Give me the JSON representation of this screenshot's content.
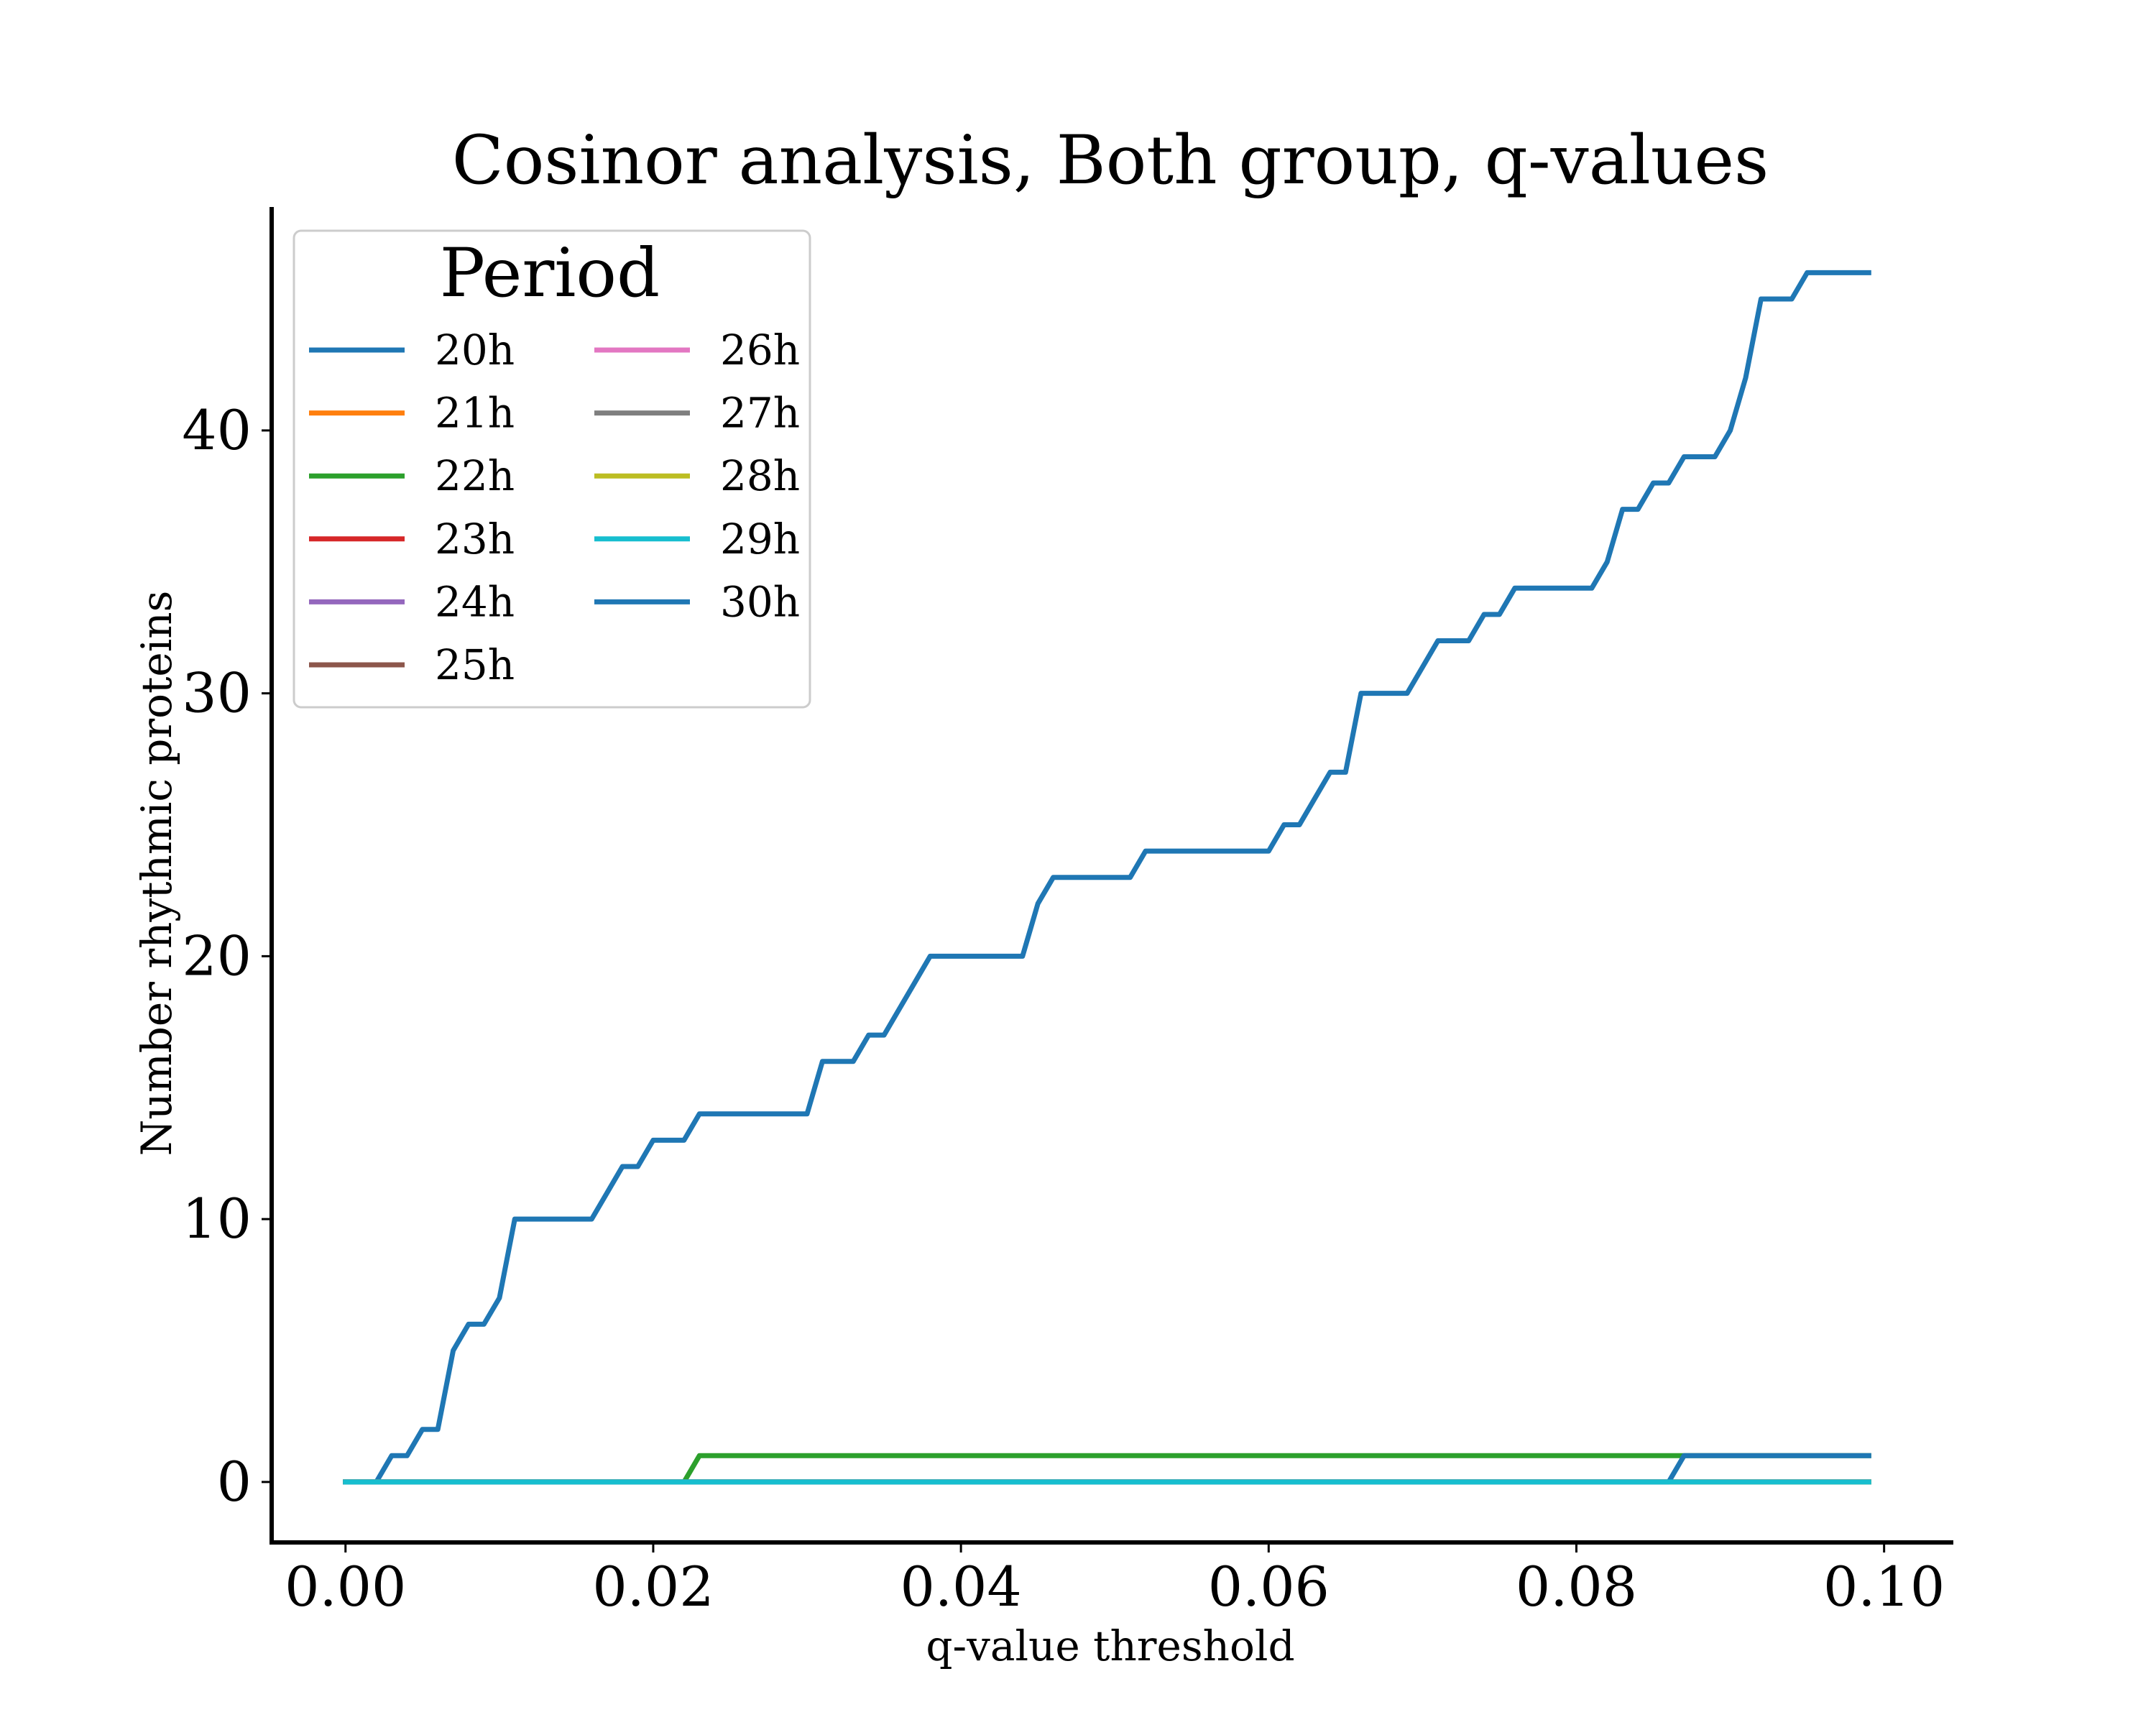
{
  "chart_data": {
    "type": "line",
    "title": "Cosinor analysis, Both group, q-values",
    "xlabel": "q-value threshold",
    "ylabel": "Number rhythmic proteins",
    "xlim": [
      -0.0048,
      0.1045
    ],
    "ylim": [
      -2.3,
      48.5
    ],
    "x_ticks": [
      0.0,
      0.02,
      0.04,
      0.06,
      0.08,
      0.1
    ],
    "x_tick_labels": [
      "0.00",
      "0.02",
      "0.04",
      "0.06",
      "0.08",
      "0.10"
    ],
    "y_ticks": [
      0,
      10,
      20,
      30,
      40
    ],
    "y_tick_labels": [
      "0",
      "10",
      "20",
      "30",
      "40"
    ],
    "grid": false,
    "legend": {
      "title": "Period",
      "placement": "top-left",
      "columns": 2
    },
    "series": [
      {
        "name": "20h",
        "color": "#1f77b4",
        "points": [
          [
            0.0,
            0
          ],
          [
            0.002,
            0
          ],
          [
            0.003,
            1
          ],
          [
            0.004,
            1
          ],
          [
            0.005,
            2
          ],
          [
            0.006,
            2
          ],
          [
            0.007,
            5
          ],
          [
            0.008,
            6
          ],
          [
            0.009,
            6
          ],
          [
            0.01,
            7
          ],
          [
            0.011,
            10
          ],
          [
            0.012,
            10
          ],
          [
            0.016,
            10
          ],
          [
            0.017,
            11
          ],
          [
            0.018,
            12
          ],
          [
            0.019,
            12
          ],
          [
            0.02,
            13
          ],
          [
            0.022,
            13
          ],
          [
            0.023,
            14
          ],
          [
            0.03,
            14
          ],
          [
            0.031,
            16
          ],
          [
            0.033,
            16
          ],
          [
            0.034,
            17
          ],
          [
            0.035,
            17
          ],
          [
            0.036,
            18
          ],
          [
            0.037,
            19
          ],
          [
            0.038,
            20
          ],
          [
            0.044,
            20
          ],
          [
            0.045,
            22
          ],
          [
            0.046,
            23
          ],
          [
            0.051,
            23
          ],
          [
            0.052,
            24
          ],
          [
            0.06,
            24
          ],
          [
            0.061,
            25
          ],
          [
            0.062,
            25
          ],
          [
            0.063,
            26
          ],
          [
            0.064,
            27
          ],
          [
            0.065,
            27
          ],
          [
            0.066,
            30
          ],
          [
            0.069,
            30
          ],
          [
            0.07,
            31
          ],
          [
            0.071,
            32
          ],
          [
            0.073,
            32
          ],
          [
            0.074,
            33
          ],
          [
            0.075,
            33
          ],
          [
            0.076,
            34
          ],
          [
            0.081,
            34
          ],
          [
            0.082,
            35
          ],
          [
            0.083,
            37
          ],
          [
            0.084,
            37
          ],
          [
            0.085,
            38
          ],
          [
            0.086,
            38
          ],
          [
            0.087,
            39
          ],
          [
            0.089,
            39
          ],
          [
            0.09,
            40
          ],
          [
            0.091,
            42
          ],
          [
            0.092,
            45
          ],
          [
            0.094,
            45
          ],
          [
            0.095,
            46
          ],
          [
            0.099,
            46
          ]
        ]
      },
      {
        "name": "21h",
        "color": "#ff7f0e",
        "points": [
          [
            0.0,
            0
          ],
          [
            0.099,
            0
          ]
        ]
      },
      {
        "name": "22h",
        "color": "#2ca02c",
        "points": [
          [
            0.0,
            0
          ],
          [
            0.022,
            0
          ],
          [
            0.023,
            1
          ],
          [
            0.099,
            1
          ]
        ]
      },
      {
        "name": "23h",
        "color": "#d62728",
        "points": [
          [
            0.0,
            0
          ],
          [
            0.099,
            0
          ]
        ]
      },
      {
        "name": "24h",
        "color": "#9467bd",
        "points": [
          [
            0.0,
            0
          ],
          [
            0.099,
            0
          ]
        ]
      },
      {
        "name": "25h",
        "color": "#8c564b",
        "points": [
          [
            0.0,
            0
          ],
          [
            0.099,
            0
          ]
        ]
      },
      {
        "name": "26h",
        "color": "#e377c2",
        "points": [
          [
            0.0,
            0
          ],
          [
            0.099,
            0
          ]
        ]
      },
      {
        "name": "27h",
        "color": "#7f7f7f",
        "points": [
          [
            0.0,
            0
          ],
          [
            0.099,
            0
          ]
        ]
      },
      {
        "name": "28h",
        "color": "#bcbd22",
        "points": [
          [
            0.0,
            0
          ],
          [
            0.099,
            0
          ]
        ]
      },
      {
        "name": "30h",
        "color": "#1f77b4",
        "points": [
          [
            0.0,
            0
          ],
          [
            0.086,
            0
          ],
          [
            0.087,
            1
          ],
          [
            0.099,
            1
          ]
        ]
      },
      {
        "name": "29h",
        "color": "#17becf",
        "points": [
          [
            0.0,
            0
          ],
          [
            0.099,
            0
          ]
        ]
      }
    ],
    "legend_order": [
      "20h",
      "21h",
      "22h",
      "23h",
      "24h",
      "25h",
      "26h",
      "27h",
      "28h",
      "29h",
      "30h"
    ]
  }
}
